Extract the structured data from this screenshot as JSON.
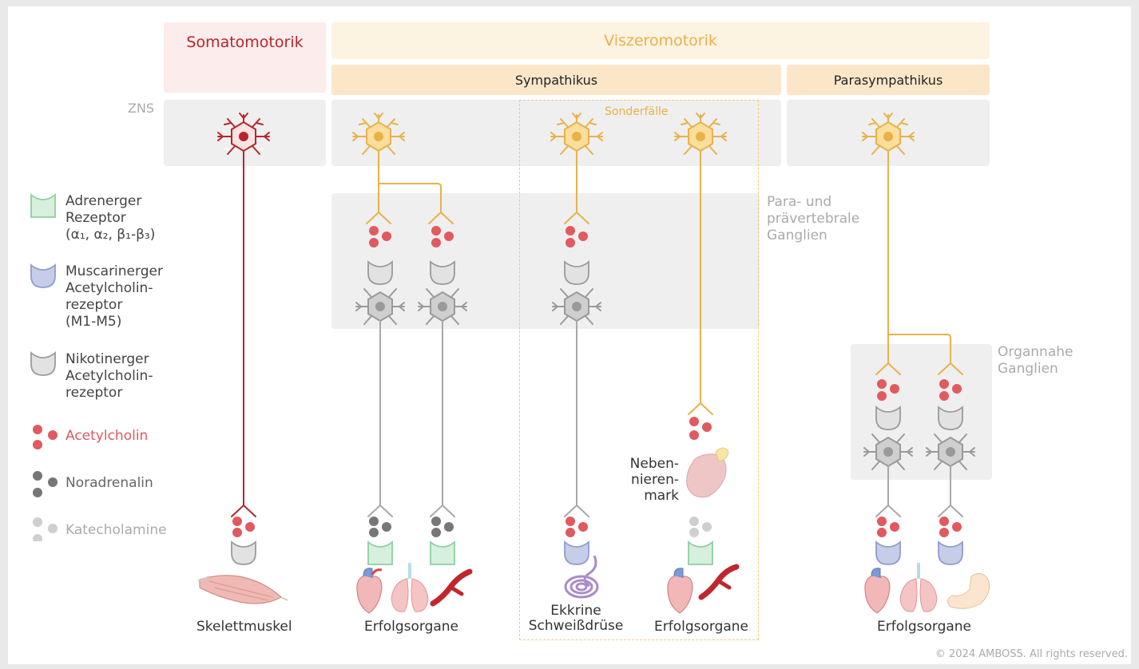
{
  "headers": {
    "somatomotorik": "Somatomotorik",
    "viszeromotorik": "Viszeromotorik",
    "sympathikus": "Sympathikus",
    "parasympathikus": "Parasympathikus"
  },
  "regions": {
    "zns": "ZNS",
    "para_prae_ganglien": [
      "Para- und",
      "prävertebrale",
      "Ganglien"
    ],
    "organnahe_ganglien": [
      "Organnahe",
      "Ganglien"
    ],
    "sonderfaelle": "Sonderfälle"
  },
  "legend": {
    "adrenerger": [
      "Adrenerger",
      "Rezeptor",
      "(α₁, α₂, β₁-β₃)"
    ],
    "muscarinerger": [
      "Muscarinerger",
      "Acetylcholin-",
      "rezeptor",
      "(M1-M5)"
    ],
    "nikotinerger": [
      "Nikotinerger",
      "Acetylcholin-",
      "rezeptor"
    ],
    "acetylcholin": "Acetylcholin",
    "noradrenalin": "Noradrenalin",
    "katecholamine": "Katecholamine"
  },
  "organs": {
    "skelettmuskel": "Skelettmuskel",
    "erfolgsorgane_symp": "Erfolgsorgane",
    "ekkrine": [
      "Ekkrine",
      "Schweißdrüse"
    ],
    "erfolgsorgane_sonder": "Erfolgsorgane",
    "nebennierenmark": [
      "Neben-",
      "nieren-",
      "mark"
    ],
    "erfolgsorgane_para": "Erfolgsorgane"
  },
  "copyright": "© 2024 AMBOSS. All rights reserved.",
  "colors": {
    "somato_red": "#b5262b",
    "viszero_yellow": "#e8b24a",
    "acetylcholin": "#e05a5f",
    "noradrenalin": "#777777",
    "katecholamine": "#cfcfcf",
    "adrenerger_receptor": "#d6f0dd",
    "muscarinerger_receptor": "#c5cde8",
    "nikotinerger_receptor": "#e2e2e2"
  }
}
